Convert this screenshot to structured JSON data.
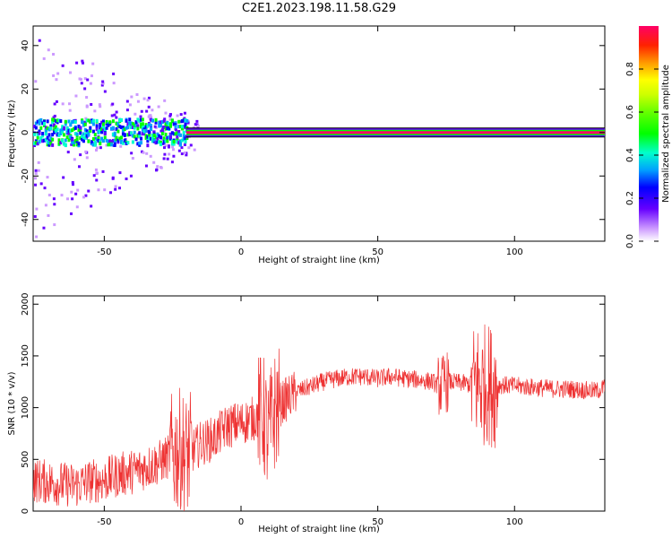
{
  "title": "C2E1.2023.198.11.58.G29",
  "chart_data": [
    {
      "type": "heatmap",
      "xlabel": "Height of straight line (km)",
      "ylabel": "Frequency (Hz)",
      "xlim": [
        -76,
        133
      ],
      "ylim": [
        -50,
        49
      ],
      "xticks": [
        -50,
        0,
        50,
        100
      ],
      "yticks": [
        -40,
        -20,
        0,
        20,
        40
      ],
      "tick_labels_x": [
        "-50",
        "0",
        "50",
        "100"
      ],
      "tick_labels_y": [
        "-40",
        "-20",
        "0",
        "20",
        "40"
      ],
      "colorbar": {
        "label": "Normalized spectral amplitude",
        "range": [
          0.0,
          1.0
        ],
        "ticks": [
          0.0,
          0.2,
          0.4,
          0.6,
          0.8
        ],
        "tick_labels": [
          "0.0",
          "0.2",
          "0.4",
          "0.6",
          "0.8"
        ],
        "colormap": "rainbow"
      },
      "features": [
        {
          "x_range": [
            -76,
            -20
          ],
          "freq_center": 0,
          "freq_spread": 6,
          "amplitude": 0.25
        },
        {
          "x_range": [
            -20,
            133
          ],
          "freq_center": 0,
          "freq_spread": 1,
          "amplitude": 0.95
        }
      ]
    },
    {
      "type": "line",
      "xlabel": "Height of straight line (km)",
      "ylabel": "SNR (10 * v/v)",
      "xlim": [
        -76,
        133
      ],
      "ylim": [
        0,
        2080
      ],
      "xticks": [
        -50,
        0,
        50,
        100
      ],
      "yticks": [
        0,
        500,
        1000,
        1500,
        2000
      ],
      "tick_labels_x": [
        "-50",
        "0",
        "50",
        "100"
      ],
      "tick_labels_y": [
        "0",
        "500",
        "1000",
        "1500",
        "2000"
      ],
      "color": "#ee3333",
      "series": [
        {
          "x": [
            -76,
            -70,
            -65,
            -60,
            -55,
            -50,
            -45,
            -40,
            -35,
            -30,
            -25,
            -22,
            -20,
            -15,
            -10,
            -5,
            0,
            5,
            8,
            10,
            12,
            15,
            20,
            25,
            30,
            35,
            40,
            45,
            50,
            55,
            60,
            65,
            70,
            73,
            75,
            80,
            85,
            87,
            88,
            90,
            92,
            95,
            100,
            105,
            110,
            115,
            120,
            125,
            130,
            133
          ],
          "values": [
            300,
            280,
            260,
            250,
            290,
            300,
            350,
            380,
            420,
            470,
            550,
            600,
            520,
            650,
            700,
            820,
            850,
            900,
            950,
            700,
            950,
            1050,
            1150,
            1200,
            1250,
            1280,
            1300,
            1300,
            1280,
            1300,
            1280,
            1270,
            1250,
            1200,
            1250,
            1240,
            1220,
            1250,
            1200,
            1250,
            1200,
            1220,
            1210,
            1200,
            1190,
            1180,
            1180,
            1170,
            1160,
            1200
          ]
        }
      ]
    }
  ]
}
